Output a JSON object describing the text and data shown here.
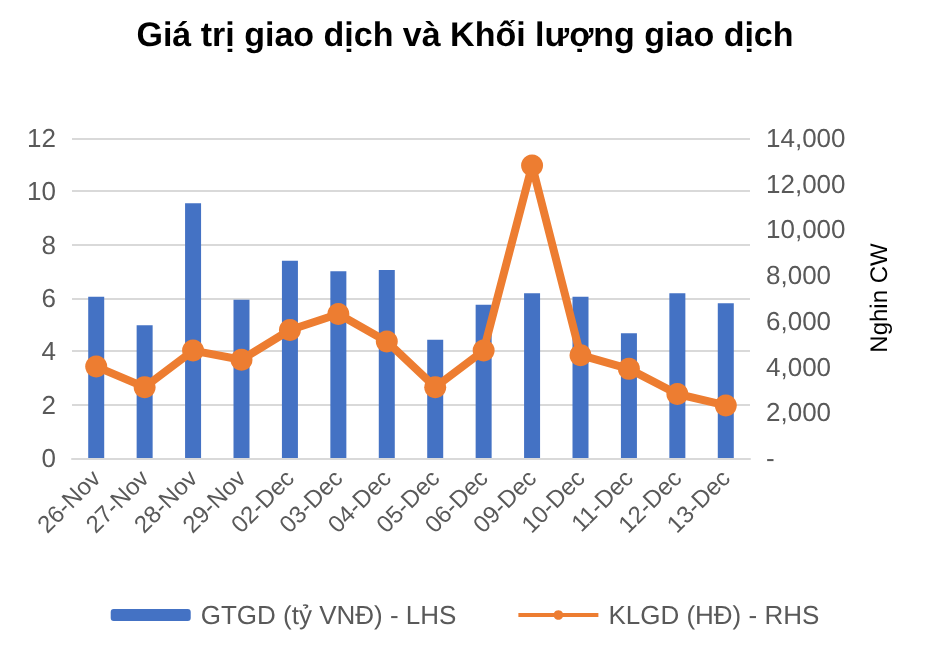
{
  "chart_data": {
    "type": "bar",
    "title": "Giá trị giao dịch và Khối lượng giao dịch",
    "y2label": "Nghin CW",
    "categories": [
      "26-Nov",
      "27-Nov",
      "28-Nov",
      "29-Nov",
      "02-Dec",
      "03-Dec",
      "04-Dec",
      "05-Dec",
      "06-Dec",
      "09-Dec",
      "10-Dec",
      "11-Dec",
      "12-Dec",
      "13-Dec"
    ],
    "series": [
      {
        "name": "GTGD (tỷ VNĐ) - LHS",
        "color": "#4472c4",
        "values": [
          6.05,
          4.98,
          9.55,
          5.93,
          7.4,
          7.0,
          7.05,
          4.43,
          5.75,
          6.18,
          6.05,
          4.68,
          6.18,
          5.8
        ]
      },
      {
        "name": "KLGD (HĐ) - RHS",
        "type": "line",
        "axis": "y2",
        "color": "#ed7d31",
        "marker": "circle",
        "values": [
          4000,
          3100,
          4700,
          4300,
          5600,
          6300,
          5100,
          3100,
          4700,
          12800,
          4500,
          3900,
          2800,
          2300
        ]
      }
    ],
    "ylim": [
      0,
      12
    ],
    "yticks": [
      0,
      2,
      4,
      6,
      8,
      10,
      12
    ],
    "y2lim": [
      0,
      14000
    ],
    "y2ticks": [
      {
        "value": 0,
        "label": "-"
      },
      {
        "value": 2000,
        "label": "2,000"
      },
      {
        "value": 4000,
        "label": "4,000"
      },
      {
        "value": 6000,
        "label": "6,000"
      },
      {
        "value": 8000,
        "label": "8,000"
      },
      {
        "value": 10000,
        "label": "10,000"
      },
      {
        "value": 12000,
        "label": "12,000"
      },
      {
        "value": 14000,
        "label": "14,000"
      }
    ],
    "grid": "y",
    "legend": "bottom"
  }
}
